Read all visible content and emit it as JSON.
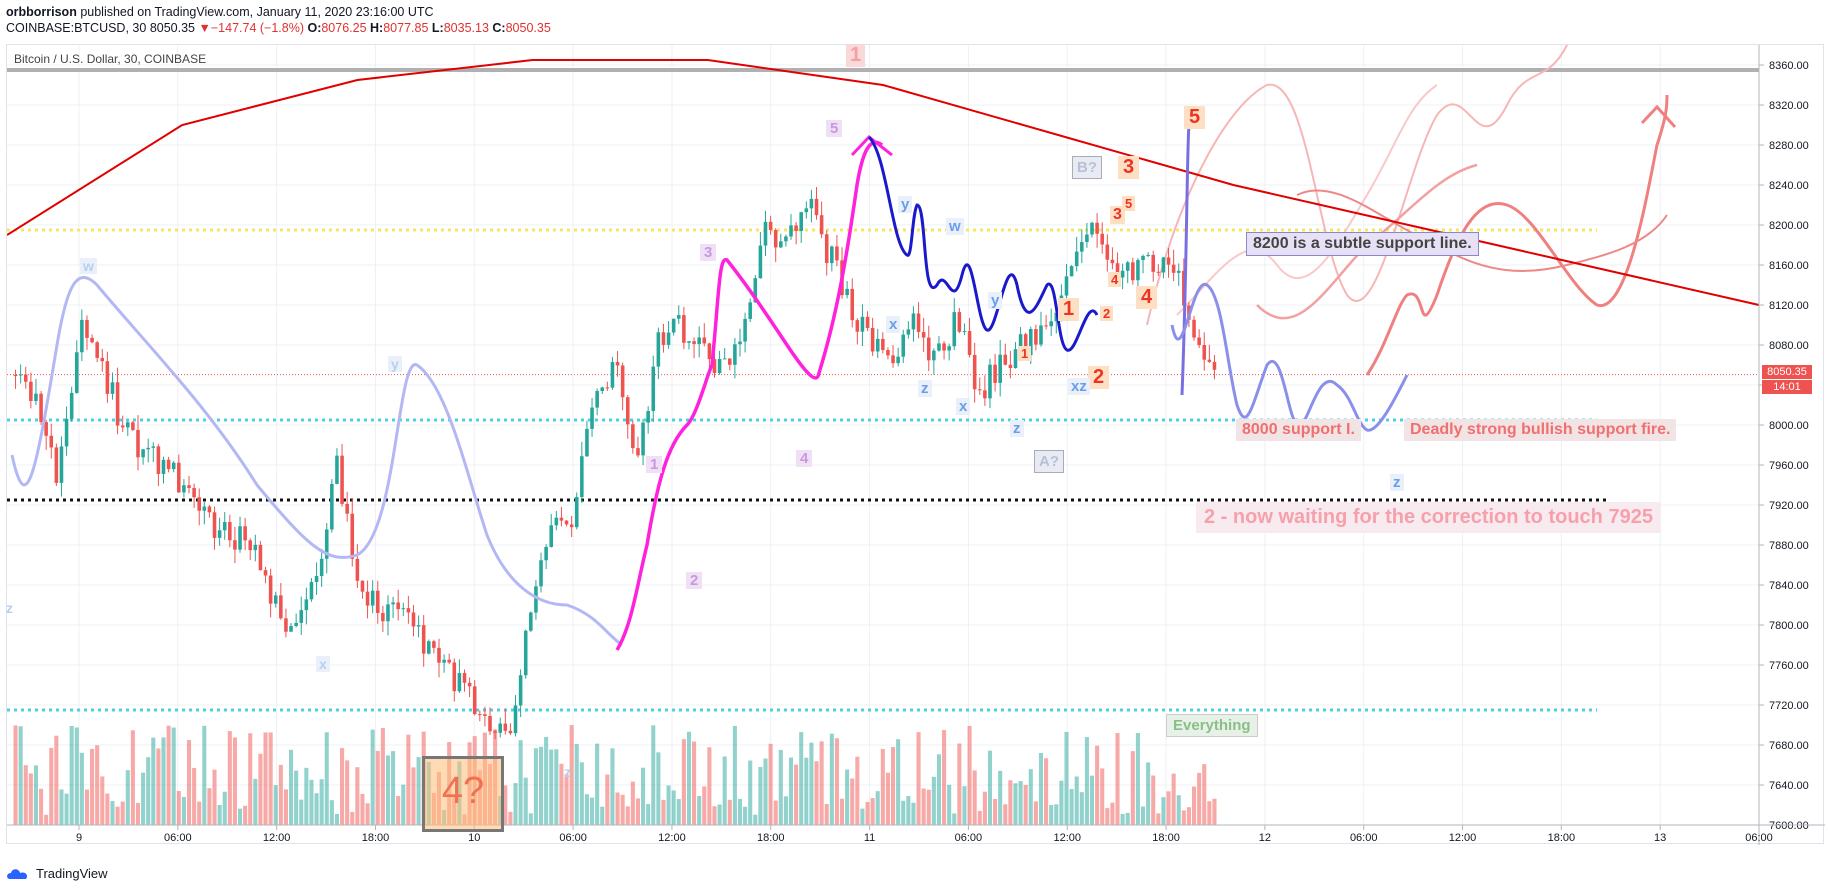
{
  "header": {
    "user": "orbborrison",
    "published": " published on TradingView.com, January 11, 2020 23:16:00 UTC",
    "symbol": "COINBASE:BTCUSD, 30",
    "last": "8050.35",
    "change_arrow": "▼",
    "change": "−147.74 (−1.8%)",
    "o_label": "O:",
    "o_val": "8076.25",
    "h_label": "H:",
    "h_val": "8077.85",
    "l_label": "L:",
    "l_val": "8035.13",
    "c_label": "C:",
    "c_val": "8050.35"
  },
  "legend": "Bitcoin / U.S. Dollar, 30, COINBASE",
  "price_badge": {
    "price": "8050.35",
    "countdown": "14:01"
  },
  "footer": {
    "brand": "TradingView",
    "icon": "tradingview-cloud-icon"
  },
  "colors": {
    "up": "#26a69a",
    "down": "#ef5350",
    "grid": "#eef0f4",
    "cyan": "#4dd0e1",
    "yellow": "#f5e663",
    "magenta": "#ff33dd",
    "blue": "#1a1acc",
    "lightblue": "#9fa8f0",
    "ma": "#e00000"
  },
  "chart_data": {
    "type": "candlestick",
    "ylim": [
      7600,
      8380
    ],
    "y_ticks": [
      8360,
      8320,
      8280,
      8240,
      8200,
      8160,
      8120,
      8080,
      8040,
      8000,
      7960,
      7920,
      7880,
      7840,
      7800,
      7760,
      7720,
      7680,
      7640,
      7600
    ],
    "x_ticks": [
      "9",
      "06:00",
      "12:00",
      "18:00",
      "10",
      "06:00",
      "12:00",
      "18:00",
      "11",
      "06:00",
      "12:00",
      "18:00",
      "12",
      "06:00",
      "12:00",
      "18:00",
      "13",
      "06:00"
    ],
    "close_path": [
      [
        0,
        8050
      ],
      [
        3,
        8020
      ],
      [
        6,
        7940
      ],
      [
        9,
        8110
      ],
      [
        12,
        8060
      ],
      [
        15,
        8000
      ],
      [
        18,
        7970
      ],
      [
        21,
        7960
      ],
      [
        24,
        7940
      ],
      [
        27,
        7900
      ],
      [
        30,
        7890
      ],
      [
        33,
        7880
      ],
      [
        36,
        7820
      ],
      [
        39,
        7800
      ],
      [
        42,
        7840
      ],
      [
        45,
        7960
      ],
      [
        48,
        7840
      ],
      [
        51,
        7820
      ],
      [
        54,
        7810
      ],
      [
        57,
        7780
      ],
      [
        60,
        7760
      ],
      [
        63,
        7730
      ],
      [
        66,
        7700
      ],
      [
        69,
        7680
      ],
      [
        72,
        7800
      ],
      [
        75,
        7900
      ],
      [
        78,
        7910
      ],
      [
        81,
        8020
      ],
      [
        84,
        8060
      ],
      [
        87,
        7960
      ],
      [
        90,
        8080
      ],
      [
        93,
        8100
      ],
      [
        96,
        8080
      ],
      [
        99,
        8050
      ],
      [
        102,
        8100
      ],
      [
        105,
        8200
      ],
      [
        108,
        8180
      ],
      [
        111,
        8220
      ],
      [
        114,
        8170
      ],
      [
        117,
        8120
      ],
      [
        120,
        8080
      ],
      [
        123,
        8060
      ],
      [
        126,
        8110
      ],
      [
        129,
        8060
      ],
      [
        132,
        8110
      ],
      [
        135,
        8030
      ],
      [
        138,
        8060
      ],
      [
        141,
        8080
      ],
      [
        144,
        8090
      ],
      [
        147,
        8150
      ],
      [
        150,
        8200
      ],
      [
        153,
        8170
      ],
      [
        156,
        8150
      ],
      [
        159,
        8160
      ],
      [
        162,
        8170
      ],
      [
        165,
        8080
      ],
      [
        168,
        8050
      ]
    ],
    "ma_path": [
      [
        0,
        8190
      ],
      [
        20,
        8300
      ],
      [
        40,
        8345
      ],
      [
        60,
        8365
      ],
      [
        80,
        8365
      ],
      [
        100,
        8340
      ],
      [
        120,
        8290
      ],
      [
        140,
        8240
      ],
      [
        160,
        8200
      ],
      [
        180,
        8160
      ],
      [
        200,
        8120
      ]
    ],
    "volumes_seed": 57,
    "levels": [
      {
        "name": "upper-grey",
        "value": 8355,
        "style": "solid",
        "color": "#b0b0b0"
      },
      {
        "name": "yellow-8195",
        "value": 8195,
        "style": "dotted",
        "color": "#f5e663"
      },
      {
        "name": "cyan-8005",
        "value": 8005,
        "style": "dotted",
        "color": "#4dd0e1"
      },
      {
        "name": "black-7925",
        "value": 7925,
        "style": "dotted",
        "color": "#111111"
      },
      {
        "name": "cyan-7715",
        "value": 7715,
        "style": "dotted",
        "color": "#4dd0e1"
      }
    ]
  },
  "annotations": {
    "note_8200": "8200 is a subtle support line.",
    "note_8000a": "8000 support I.",
    "note_8000b": "Deadly strong bullish support fire.",
    "note_7925": "2 - now waiting for the correction to touch 7925",
    "everything": "Everything",
    "four_q": "4?",
    "b_q": "B?",
    "a_q": "A?",
    "wave_1_top": "1",
    "wave_5": "5",
    "wave_3": "3",
    "wave_4": "4",
    "wave_2": "2",
    "wave_1": "1",
    "sub_3": "3",
    "sub_5": "5",
    "sub_4": "4",
    "sub_1": "1",
    "sub_2": "2",
    "w": "w",
    "x": "x",
    "y": "y",
    "z": "z"
  }
}
